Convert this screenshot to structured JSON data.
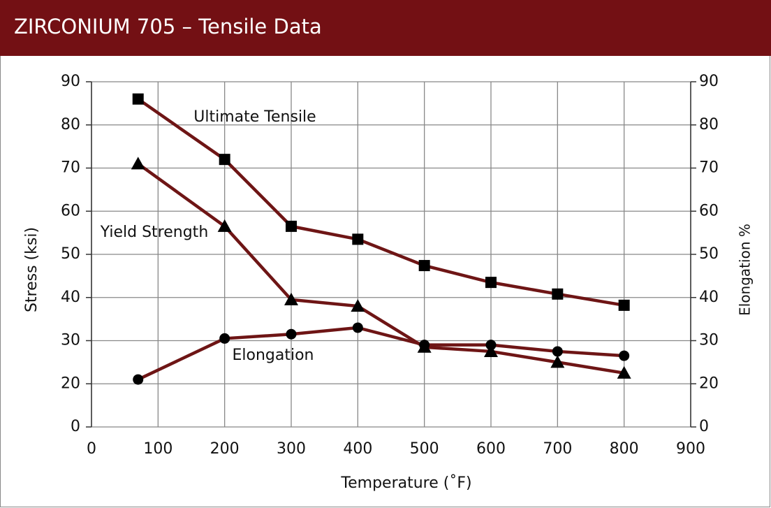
{
  "chart_data": {
    "type": "line",
    "title": "ZIRCONIUM 705 – Tensile Data",
    "x_label": "Temperature (˚F)",
    "y_label": "Stress (ksi)",
    "y2_label": "Elongation %",
    "x": [
      70,
      200,
      300,
      400,
      500,
      600,
      700,
      800
    ],
    "xlim": [
      0,
      900
    ],
    "xticks": [
      0,
      100,
      200,
      300,
      400,
      500,
      600,
      700,
      800,
      900
    ],
    "ylim": [
      10,
      90
    ],
    "yticks": [
      {
        "value": 10,
        "label": "0"
      },
      20,
      30,
      40,
      50,
      60,
      70,
      80,
      90
    ],
    "y2lim": [
      10,
      90
    ],
    "y2ticks": [
      {
        "value": 10,
        "label": "0"
      },
      20,
      30,
      40,
      50,
      60,
      70,
      80,
      90
    ],
    "grid": true,
    "line_color": "#6e1515",
    "marker_color": "#000000",
    "series": [
      {
        "name": "Ultimate Tensile",
        "marker": "square",
        "values": [
          86,
          72,
          56.5,
          53.5,
          47.4,
          43.5,
          40.8,
          38.2
        ]
      },
      {
        "name": "Yield Strength",
        "marker": "triangle",
        "values": [
          71,
          56.5,
          39.5,
          38,
          28.5,
          27.5,
          25,
          22.5
        ]
      },
      {
        "name": "Elongation",
        "marker": "circle",
        "axis": "y2",
        "values": [
          21,
          30.5,
          31.5,
          33,
          29,
          29,
          27.5,
          26.5
        ]
      }
    ]
  }
}
